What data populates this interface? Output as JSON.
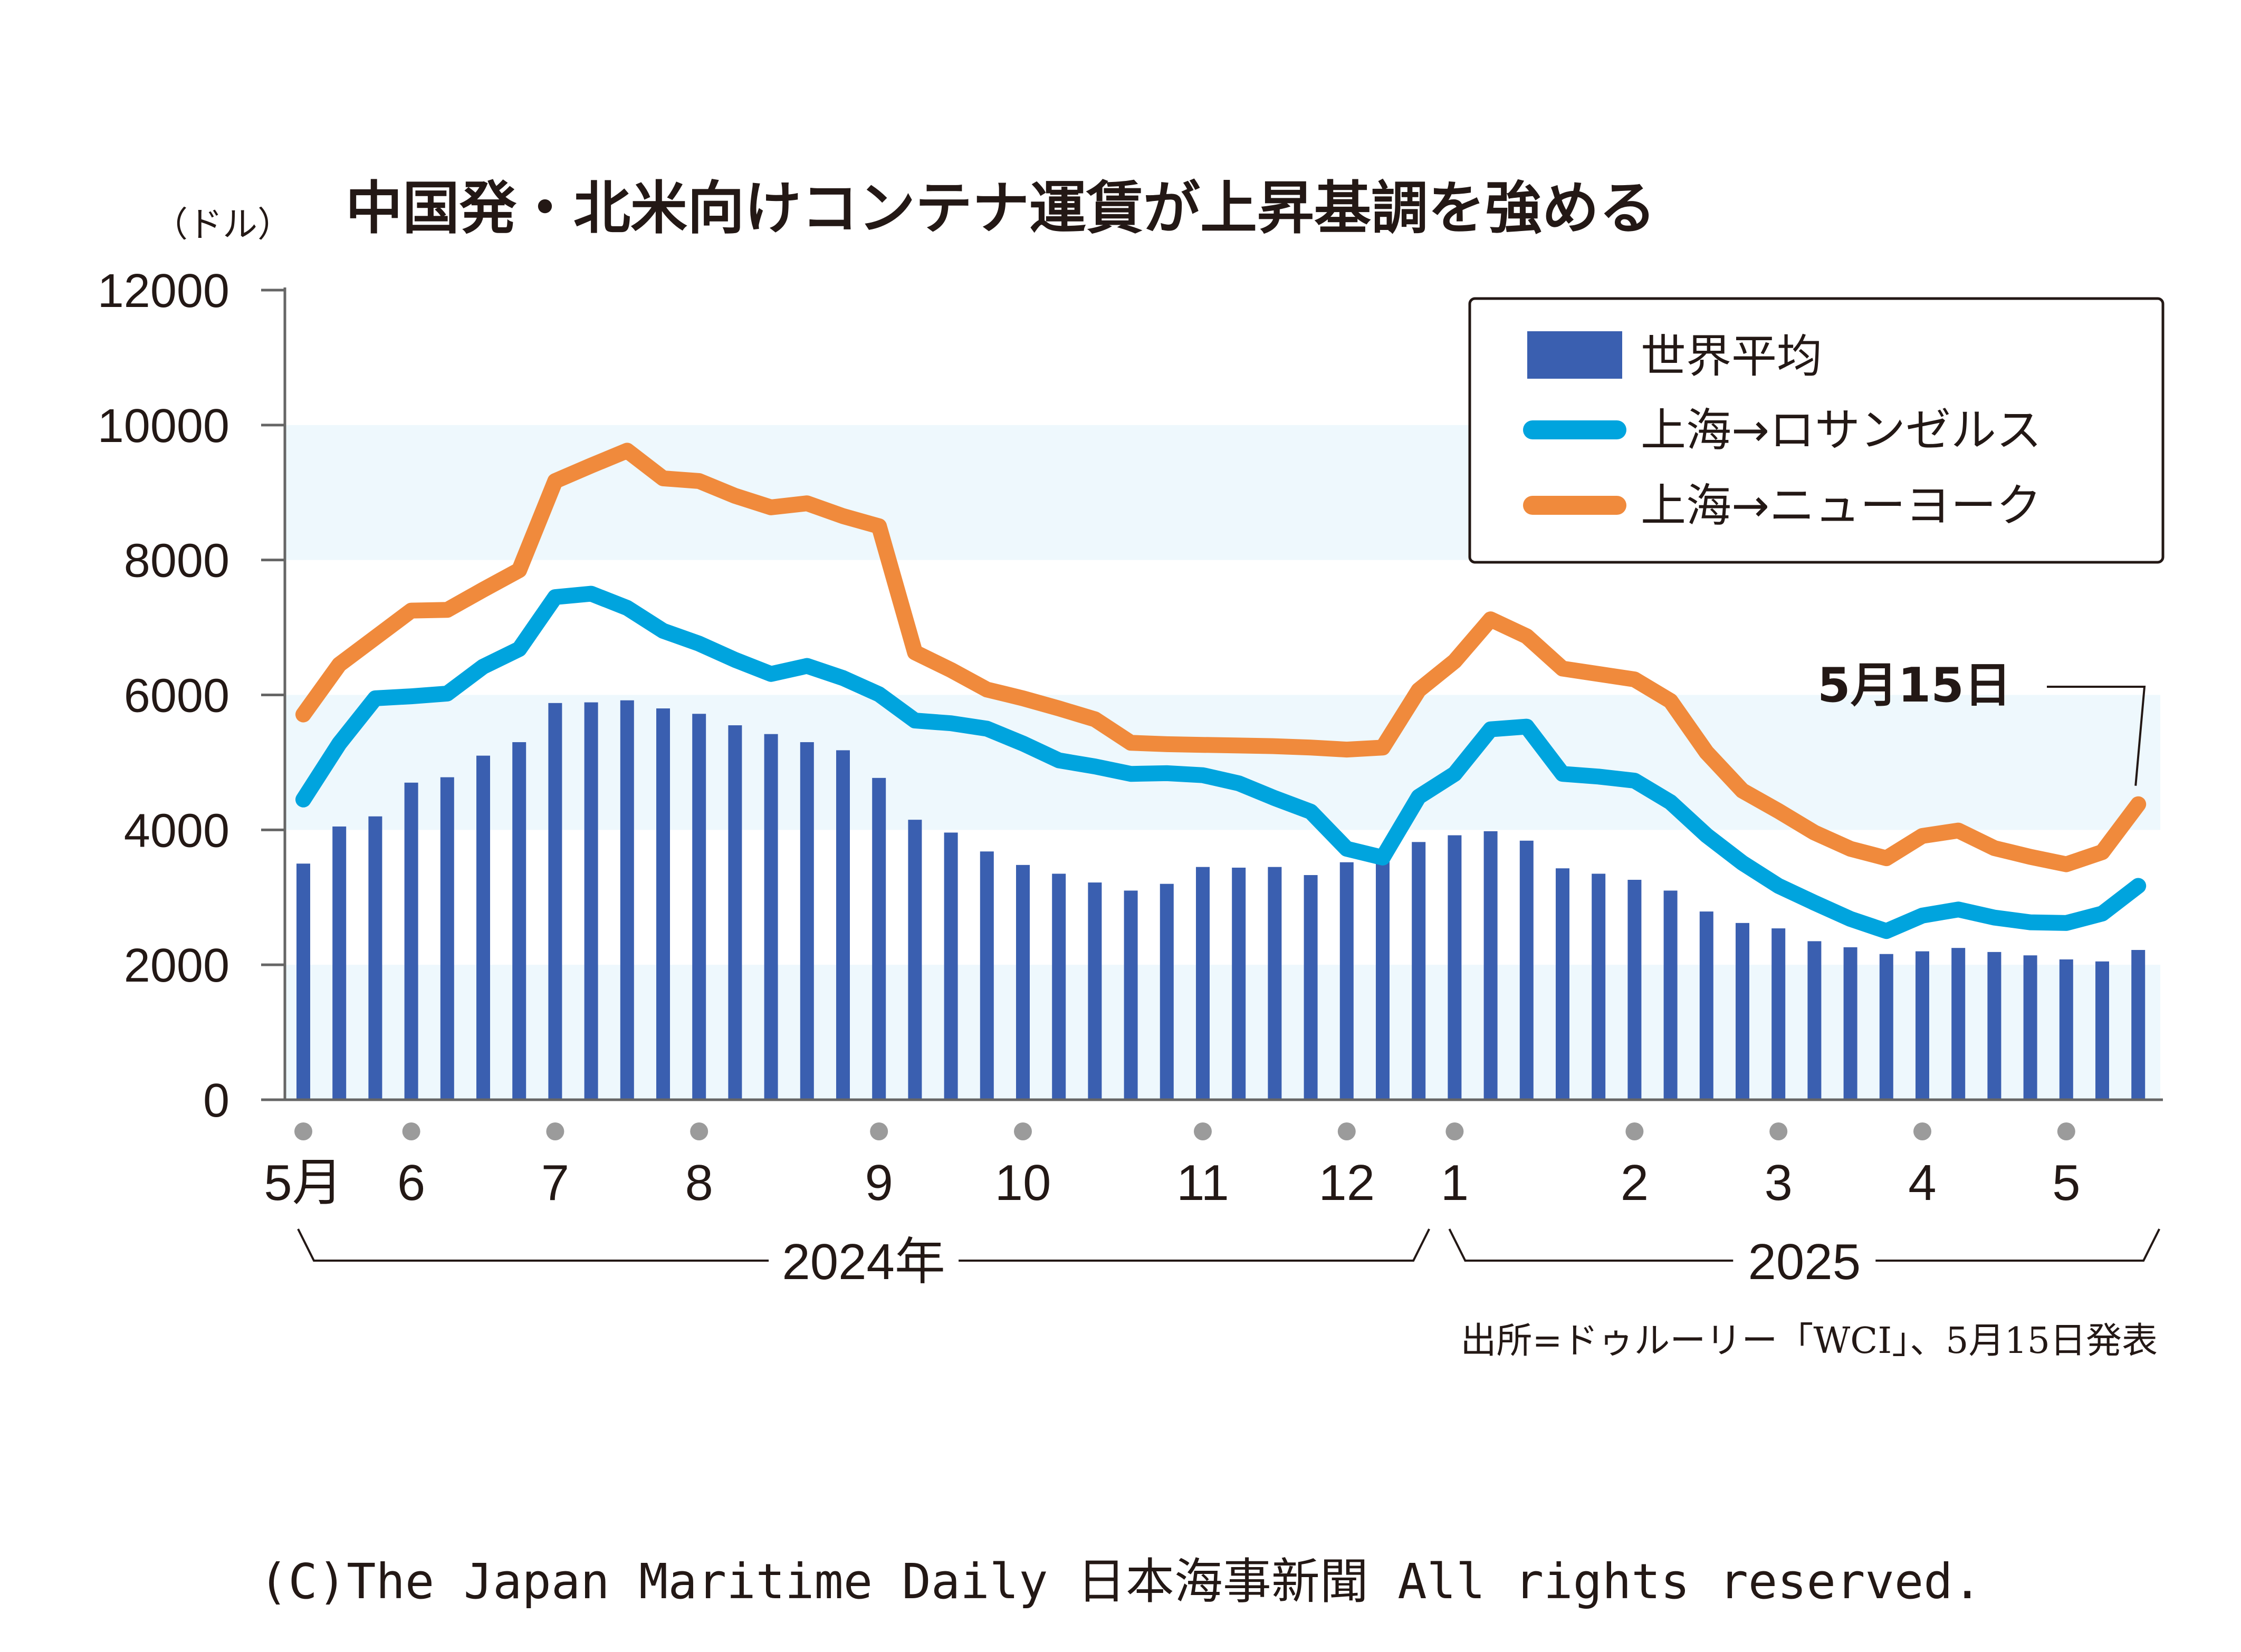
{
  "chart_data": {
    "type": "bar+line",
    "title": "中国発・北米向けコンテナ運賃が上昇基調を強める",
    "ylabel": "（ドル）",
    "ylim": [
      0,
      12000
    ],
    "yticks": [
      0,
      2000,
      4000,
      6000,
      8000,
      10000,
      12000
    ],
    "x_month_labels": [
      {
        "label": "5月",
        "week": 0
      },
      {
        "label": "6",
        "week": 3
      },
      {
        "label": "7",
        "week": 7
      },
      {
        "label": "8",
        "week": 11
      },
      {
        "label": "9",
        "week": 16
      },
      {
        "label": "10",
        "week": 20
      },
      {
        "label": "11",
        "week": 25
      },
      {
        "label": "12",
        "week": 29
      },
      {
        "label": "1",
        "week": 32
      },
      {
        "label": "2",
        "week": 37
      },
      {
        "label": "3",
        "week": 41
      },
      {
        "label": "4",
        "week": 45
      },
      {
        "label": "5",
        "week": 49
      }
    ],
    "year_labels": [
      {
        "label": "2024年",
        "from_week": 0,
        "to_week": 31
      },
      {
        "label": "2025",
        "from_week": 32,
        "to_week": 51
      }
    ],
    "series": [
      {
        "name": "世界平均",
        "kind": "bar",
        "color": "#3a5fb0",
        "values": [
          3500,
          4050,
          4200,
          4700,
          4780,
          5100,
          5300,
          5880,
          5890,
          5920,
          5800,
          5720,
          5550,
          5420,
          5300,
          5180,
          4770,
          4150,
          3960,
          3680,
          3480,
          3350,
          3220,
          3100,
          3200,
          3450,
          3440,
          3450,
          3330,
          3520,
          3560,
          3820,
          3920,
          3980,
          3840,
          3430,
          3350,
          3260,
          3100,
          2790,
          2620,
          2540,
          2350,
          2260,
          2160,
          2200,
          2250,
          2190,
          2140,
          2080,
          2050,
          2220
        ]
      },
      {
        "name": "上海→ロサンゼルス",
        "kind": "line",
        "color": "#00a4de",
        "values": [
          4450,
          5280,
          5950,
          5980,
          6020,
          6420,
          6680,
          7450,
          7500,
          7290,
          6950,
          6760,
          6520,
          6310,
          6430,
          6250,
          6010,
          5620,
          5580,
          5500,
          5280,
          5030,
          4940,
          4830,
          4840,
          4810,
          4690,
          4470,
          4270,
          3720,
          3590,
          4490,
          4830,
          5490,
          5530,
          4830,
          4790,
          4730,
          4410,
          3920,
          3510,
          3170,
          2920,
          2680,
          2500,
          2730,
          2820,
          2700,
          2630,
          2620,
          2760,
          3170
        ]
      },
      {
        "name": "上海→ニューヨーク",
        "kind": "line",
        "color": "#f08a3c",
        "values": [
          5710,
          6450,
          6850,
          7250,
          7260,
          7560,
          7850,
          9170,
          9400,
          9620,
          9210,
          9170,
          8950,
          8780,
          8840,
          8650,
          8500,
          6630,
          6370,
          6080,
          5950,
          5800,
          5640,
          5290,
          5270,
          5260,
          5250,
          5240,
          5220,
          5190,
          5220,
          6070,
          6500,
          7120,
          6870,
          6390,
          6310,
          6230,
          5910,
          5150,
          4580,
          4280,
          3960,
          3720,
          3580,
          3910,
          3990,
          3730,
          3600,
          3490,
          3670,
          4380
        ]
      }
    ],
    "legend": {
      "position": "top-right"
    },
    "annotation": {
      "text": "5月15日",
      "target_week": 51
    },
    "source": "出所=ドゥルーリー「WCI」、5月15日発表"
  },
  "copyright": "(C)The Japan Maritime Daily 日本海事新聞 All rights reserved.",
  "colors": {
    "band": "#eef8fd",
    "axis": "#666666",
    "text": "#231815",
    "dot": "#9b9b9b"
  }
}
